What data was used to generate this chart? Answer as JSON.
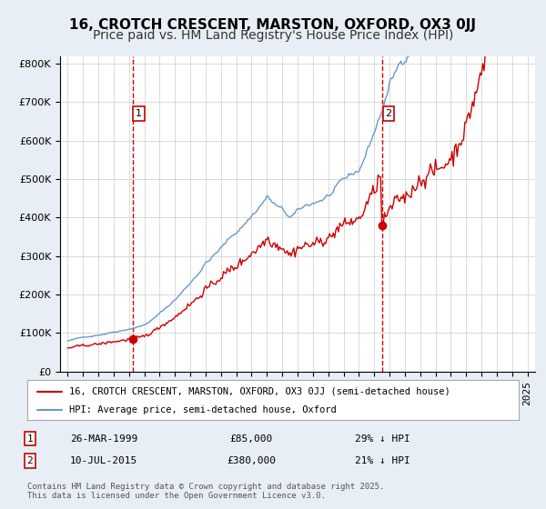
{
  "title": "16, CROTCH CRESCENT, MARSTON, OXFORD, OX3 0JJ",
  "subtitle": "Price paid vs. HM Land Registry's House Price Index (HPI)",
  "red_label": "16, CROTCH CRESCENT, MARSTON, OXFORD, OX3 0JJ (semi-detached house)",
  "blue_label": "HPI: Average price, semi-detached house, Oxford",
  "sale1_date": "26-MAR-1999",
  "sale1_price": 85000,
  "sale1_note": "29% ↓ HPI",
  "sale2_date": "10-JUL-2015",
  "sale2_price": 380000,
  "sale2_note": "21% ↓ HPI",
  "sale1_year": 1999.23,
  "sale2_year": 2015.52,
  "footer": "Contains HM Land Registry data © Crown copyright and database right 2025.\nThis data is licensed under the Open Government Licence v3.0.",
  "ylim": [
    0,
    820000
  ],
  "xlim_start": 1994.5,
  "xlim_end": 2025.5,
  "red_color": "#cc0000",
  "blue_color": "#6699cc",
  "bg_color": "#e8eef5",
  "plot_bg": "#ffffff",
  "grid_color": "#cccccc",
  "vline_color": "#cc0000",
  "title_fontsize": 11,
  "subtitle_fontsize": 10,
  "tick_fontsize": 8,
  "legend_fontsize": 8,
  "annotation_fontsize": 8
}
